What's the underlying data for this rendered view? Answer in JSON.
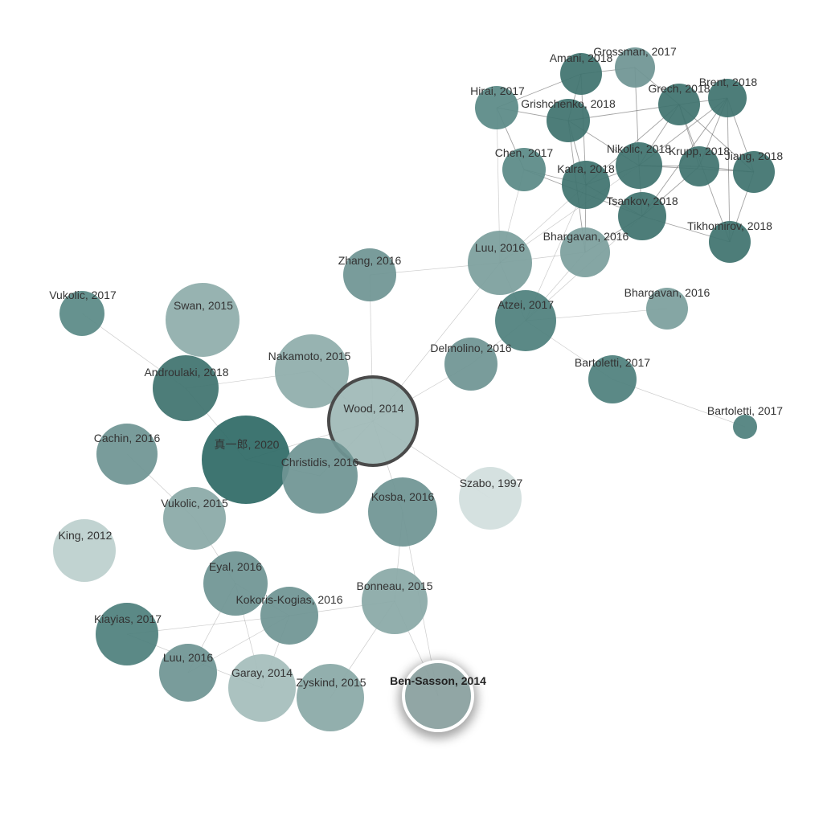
{
  "graph": {
    "nodes": [
      {
        "id": "vukolic2017",
        "label": "Vukolic, 2017",
        "color": "#5a8a87"
      },
      {
        "id": "swan2015",
        "label": "Swan, 2015",
        "color": "#8fadab"
      },
      {
        "id": "androulaki2018",
        "label": "Androulaki, 2018",
        "color": "#3f736f"
      },
      {
        "id": "nakamoto2015",
        "label": "Nakamoto, 2015",
        "color": "#8fadab"
      },
      {
        "id": "wood2014",
        "label": "Wood, 2014",
        "color": "#9fb9b7",
        "highlight": "ring-dark"
      },
      {
        "id": "cachin2016",
        "label": "Cachin, 2016",
        "color": "#6f9593"
      },
      {
        "id": "shinichiro2020",
        "label": "真一郎, 2020",
        "color": "#2f6a66"
      },
      {
        "id": "christidis2016",
        "label": "Christidis, 2016",
        "color": "#6f9593"
      },
      {
        "id": "vukolic2015",
        "label": "Vukolic, 2015",
        "color": "#8aa9a7"
      },
      {
        "id": "king2012",
        "label": "King, 2012",
        "color": "#bcd0ce"
      },
      {
        "id": "eyal2016",
        "label": "Eyal, 2016",
        "color": "#6f9593"
      },
      {
        "id": "kokoris2016",
        "label": "Kokoris-Kogias, 2016",
        "color": "#6f9593"
      },
      {
        "id": "kiayias2017",
        "label": "Kiayias, 2017",
        "color": "#4f807d"
      },
      {
        "id": "luu2016b",
        "label": "Luu, 2016",
        "color": "#6f9593"
      },
      {
        "id": "garay2014",
        "label": "Garay, 2014",
        "color": "#a5bdbb"
      },
      {
        "id": "zyskind2015",
        "label": "Zyskind, 2015",
        "color": "#8aa9a7"
      },
      {
        "id": "bonneau2015",
        "label": "Bonneau, 2015",
        "color": "#8aa9a7"
      },
      {
        "id": "kosba2016",
        "label": "Kosba, 2016",
        "color": "#6f9593"
      },
      {
        "id": "bensasson2014",
        "label": "Ben-Sasson, 2014",
        "color": "#8fa6a5",
        "highlight": "glow"
      },
      {
        "id": "szabo1997",
        "label": "Szabo, 1997",
        "color": "#d2dfde"
      },
      {
        "id": "zhang2016",
        "label": "Zhang, 2016",
        "color": "#6f9593"
      },
      {
        "id": "delmolino2016",
        "label": "Delmolino, 2016",
        "color": "#6f9593"
      },
      {
        "id": "luu2016a",
        "label": "Luu, 2016",
        "color": "#7c9f9d"
      },
      {
        "id": "atzei2017",
        "label": "Atzei, 2017",
        "color": "#4f807d"
      },
      {
        "id": "bhargavan2016a",
        "label": "Bhargavan, 2016",
        "color": "#7c9f9d"
      },
      {
        "id": "bhargavan2016b",
        "label": "Bhargavan, 2016",
        "color": "#7c9f9d"
      },
      {
        "id": "bartoletti2017a",
        "label": "Bartoletti, 2017",
        "color": "#4f807d"
      },
      {
        "id": "bartoletti2017b",
        "label": "Bartoletti, 2017",
        "color": "#4f807d"
      },
      {
        "id": "hirai2017",
        "label": "Hirai, 2017",
        "color": "#5a8a87"
      },
      {
        "id": "amani2018",
        "label": "Amani, 2018",
        "color": "#3f736f"
      },
      {
        "id": "grossman2017",
        "label": "Grossman, 2017",
        "color": "#6f9593"
      },
      {
        "id": "grishchenko2018",
        "label": "Grishchenko, 2018",
        "color": "#3f736f"
      },
      {
        "id": "grech2018",
        "label": "Grech, 2018",
        "color": "#3f736f"
      },
      {
        "id": "brent2018",
        "label": "Brent, 2018",
        "color": "#3f736f"
      },
      {
        "id": "chen2017",
        "label": "Chen, 2017",
        "color": "#5a8a87"
      },
      {
        "id": "kalra2018",
        "label": "Kalra, 2018",
        "color": "#3f736f"
      },
      {
        "id": "nikolic2018",
        "label": "Nikolic, 2018",
        "color": "#3f736f"
      },
      {
        "id": "krupp2018",
        "label": "Krupp, 2018",
        "color": "#3f736f"
      },
      {
        "id": "jiang2018",
        "label": "Jiang, 2018",
        "color": "#3f736f"
      },
      {
        "id": "tsankov2018",
        "label": "Tsankov, 2018",
        "color": "#3f736f"
      },
      {
        "id": "tikhomirov2018",
        "label": "Tikhomirov, 2018",
        "color": "#3f736f"
      }
    ],
    "edges": [
      [
        "vukolic2017",
        "androulaki2018"
      ],
      [
        "androulaki2018",
        "nakamoto2015"
      ],
      [
        "androulaki2018",
        "shinichiro2020"
      ],
      [
        "shinichiro2020",
        "wood2014"
      ],
      [
        "shinichiro2020",
        "christidis2016"
      ],
      [
        "wood2014",
        "christidis2016"
      ],
      [
        "wood2014",
        "nakamoto2015"
      ],
      [
        "wood2014",
        "zhang2016"
      ],
      [
        "wood2014",
        "delmolino2016"
      ],
      [
        "wood2014",
        "luu2016a"
      ],
      [
        "wood2014",
        "kosba2016"
      ],
      [
        "wood2014",
        "szabo1997"
      ],
      [
        "cachin2016",
        "vukolic2015"
      ],
      [
        "vukolic2015",
        "eyal2016"
      ],
      [
        "eyal2016",
        "kokoris2016"
      ],
      [
        "eyal2016",
        "garay2014"
      ],
      [
        "eyal2016",
        "luu2016b"
      ],
      [
        "kokoris2016",
        "luu2016b"
      ],
      [
        "kokoris2016",
        "garay2014"
      ],
      [
        "kokoris2016",
        "bonneau2015"
      ],
      [
        "kiayias2017",
        "garay2014"
      ],
      [
        "kiayias2017",
        "kokoris2016"
      ],
      [
        "bonneau2015",
        "kosba2016"
      ],
      [
        "bonneau2015",
        "zyskind2015"
      ],
      [
        "kosba2016",
        "bensasson2014"
      ],
      [
        "bonneau2015",
        "bensasson2014"
      ],
      [
        "delmolino2016",
        "atzei2017"
      ],
      [
        "zhang2016",
        "luu2016a"
      ],
      [
        "luu2016a",
        "atzei2017"
      ],
      [
        "luu2016a",
        "bhargavan2016a"
      ],
      [
        "atzei2017",
        "bhargavan2016a"
      ],
      [
        "atzei2017",
        "bartoletti2017a"
      ],
      [
        "atzei2017",
        "bhargavan2016b"
      ],
      [
        "bartoletti2017a",
        "bartoletti2017b"
      ],
      [
        "luu2016a",
        "hirai2017"
      ],
      [
        "luu2016a",
        "chen2017"
      ],
      [
        "luu2016a",
        "kalra2018"
      ],
      [
        "luu2016a",
        "nikolic2018"
      ],
      [
        "atzei2017",
        "tsankov2018"
      ],
      [
        "atzei2017",
        "kalra2018"
      ],
      [
        "bhargavan2016a",
        "kalra2018"
      ],
      [
        "bhargavan2016a",
        "tsankov2018"
      ],
      [
        "bhargavan2016a",
        "grishchenko2018"
      ],
      [
        "hirai2017",
        "amani2018"
      ],
      [
        "hirai2017",
        "grishchenko2018"
      ],
      [
        "amani2018",
        "grossman2017"
      ],
      [
        "amani2018",
        "grishchenko2018"
      ],
      [
        "grossman2017",
        "grech2018"
      ],
      [
        "grech2018",
        "brent2018"
      ],
      [
        "grishchenko2018",
        "kalra2018"
      ],
      [
        "grishchenko2018",
        "nikolic2018"
      ],
      [
        "grishchenko2018",
        "grech2018"
      ],
      [
        "chen2017",
        "kalra2018"
      ],
      [
        "chen2017",
        "tsankov2018"
      ],
      [
        "kalra2018",
        "nikolic2018"
      ],
      [
        "kalra2018",
        "tsankov2018"
      ],
      [
        "nikolic2018",
        "krupp2018"
      ],
      [
        "nikolic2018",
        "jiang2018"
      ],
      [
        "nikolic2018",
        "tsankov2018"
      ],
      [
        "nikolic2018",
        "grech2018"
      ],
      [
        "nikolic2018",
        "brent2018"
      ],
      [
        "krupp2018",
        "jiang2018"
      ],
      [
        "krupp2018",
        "brent2018"
      ],
      [
        "krupp2018",
        "tsankov2018"
      ],
      [
        "jiang2018",
        "brent2018"
      ],
      [
        "jiang2018",
        "tikhomirov2018"
      ],
      [
        "tsankov2018",
        "tikhomirov2018"
      ],
      [
        "grech2018",
        "tikhomirov2018"
      ],
      [
        "brent2018",
        "tikhomirov2018"
      ],
      [
        "grech2018",
        "kalra2018"
      ],
      [
        "grossman2017",
        "nikolic2018"
      ],
      [
        "amani2018",
        "kalra2018"
      ],
      [
        "hirai2017",
        "chen2017"
      ],
      [
        "brent2018",
        "tsankov2018"
      ],
      [
        "grech2018",
        "krupp2018"
      ],
      [
        "grech2018",
        "jiang2018"
      ]
    ]
  }
}
